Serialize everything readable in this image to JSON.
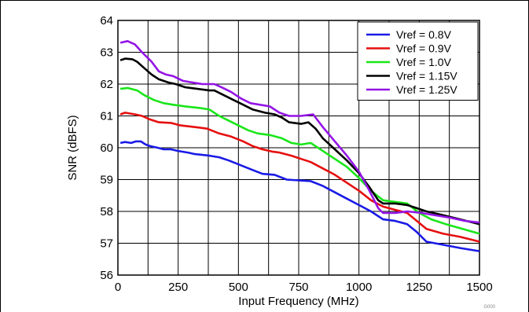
{
  "chart_data": {
    "type": "line",
    "title": "",
    "xlabel": "Input Frequency (MHz)",
    "ylabel": "SNR (dBFS)",
    "xlim": [
      0,
      1500
    ],
    "ylim": [
      56,
      64
    ],
    "xticks": [
      0,
      250,
      500,
      750,
      1000,
      1250,
      1500
    ],
    "yticks": [
      56,
      57,
      58,
      59,
      60,
      61,
      62,
      63,
      64
    ],
    "xtick_labels": [
      "0",
      "250",
      "500",
      "750",
      "1000",
      "1250",
      "1500"
    ],
    "ytick_labels": [
      "56",
      "57",
      "58",
      "59",
      "60",
      "61",
      "62",
      "63",
      "64"
    ],
    "grid": true,
    "legend_position": "top-right",
    "series": [
      {
        "name": "Vref = 0.8V",
        "color": "#1a1ae6",
        "points": [
          [
            10,
            60.15
          ],
          [
            30,
            60.18
          ],
          [
            55,
            60.15
          ],
          [
            75,
            60.2
          ],
          [
            95,
            60.2
          ],
          [
            115,
            60.1
          ],
          [
            135,
            60.05
          ],
          [
            165,
            60.0
          ],
          [
            190,
            59.95
          ],
          [
            220,
            59.95
          ],
          [
            250,
            59.9
          ],
          [
            290,
            59.85
          ],
          [
            320,
            59.8
          ],
          [
            380,
            59.75
          ],
          [
            420,
            59.7
          ],
          [
            460,
            59.6
          ],
          [
            510,
            59.45
          ],
          [
            560,
            59.3
          ],
          [
            600,
            59.18
          ],
          [
            650,
            59.15
          ],
          [
            700,
            59.0
          ],
          [
            760,
            58.97
          ],
          [
            800,
            58.95
          ],
          [
            850,
            58.8
          ],
          [
            900,
            58.6
          ],
          [
            950,
            58.4
          ],
          [
            1000,
            58.2
          ],
          [
            1050,
            58.0
          ],
          [
            1100,
            57.75
          ],
          [
            1150,
            57.7
          ],
          [
            1200,
            57.6
          ],
          [
            1240,
            57.35
          ],
          [
            1280,
            57.05
          ],
          [
            1350,
            56.95
          ],
          [
            1420,
            56.85
          ],
          [
            1500,
            56.75
          ]
        ]
      },
      {
        "name": "Vref = 0.9V",
        "color": "#e60f0f",
        "points": [
          [
            10,
            61.05
          ],
          [
            30,
            61.1
          ],
          [
            70,
            61.05
          ],
          [
            100,
            61.0
          ],
          [
            130,
            60.9
          ],
          [
            170,
            60.8
          ],
          [
            220,
            60.78
          ],
          [
            260,
            60.7
          ],
          [
            320,
            60.65
          ],
          [
            370,
            60.6
          ],
          [
            420,
            60.45
          ],
          [
            470,
            60.35
          ],
          [
            520,
            60.2
          ],
          [
            560,
            60.05
          ],
          [
            600,
            59.95
          ],
          [
            640,
            59.88
          ],
          [
            670,
            59.85
          ],
          [
            720,
            59.75
          ],
          [
            760,
            59.65
          ],
          [
            800,
            59.55
          ],
          [
            850,
            59.35
          ],
          [
            900,
            59.15
          ],
          [
            950,
            58.9
          ],
          [
            1000,
            58.65
          ],
          [
            1050,
            58.35
          ],
          [
            1100,
            58.15
          ],
          [
            1150,
            58.05
          ],
          [
            1200,
            57.95
          ],
          [
            1240,
            57.7
          ],
          [
            1280,
            57.45
          ],
          [
            1350,
            57.3
          ],
          [
            1420,
            57.2
          ],
          [
            1500,
            57.05
          ]
        ]
      },
      {
        "name": "Vref = 1.0V",
        "color": "#19e619",
        "points": [
          [
            10,
            61.85
          ],
          [
            40,
            61.88
          ],
          [
            80,
            61.8
          ],
          [
            110,
            61.65
          ],
          [
            150,
            61.5
          ],
          [
            190,
            61.4
          ],
          [
            230,
            61.35
          ],
          [
            280,
            61.3
          ],
          [
            340,
            61.25
          ],
          [
            380,
            61.2
          ],
          [
            420,
            61.0
          ],
          [
            460,
            60.85
          ],
          [
            500,
            60.7
          ],
          [
            540,
            60.55
          ],
          [
            580,
            60.45
          ],
          [
            630,
            60.4
          ],
          [
            680,
            60.3
          ],
          [
            720,
            60.15
          ],
          [
            760,
            60.1
          ],
          [
            800,
            60.15
          ],
          [
            850,
            59.9
          ],
          [
            900,
            59.65
          ],
          [
            950,
            59.4
          ],
          [
            1000,
            59.05
          ],
          [
            1050,
            58.65
          ],
          [
            1100,
            58.35
          ],
          [
            1150,
            58.3
          ],
          [
            1200,
            58.25
          ],
          [
            1250,
            57.95
          ],
          [
            1300,
            57.75
          ],
          [
            1360,
            57.6
          ],
          [
            1430,
            57.45
          ],
          [
            1500,
            57.3
          ]
        ]
      },
      {
        "name": "Vref = 1.15V",
        "color": "#000000",
        "points": [
          [
            10,
            62.75
          ],
          [
            30,
            62.8
          ],
          [
            60,
            62.78
          ],
          [
            80,
            62.7
          ],
          [
            110,
            62.5
          ],
          [
            140,
            62.3
          ],
          [
            170,
            62.15
          ],
          [
            210,
            62.05
          ],
          [
            240,
            62.0
          ],
          [
            280,
            61.9
          ],
          [
            330,
            61.85
          ],
          [
            380,
            61.8
          ],
          [
            400,
            61.8
          ],
          [
            440,
            61.65
          ],
          [
            480,
            61.5
          ],
          [
            520,
            61.35
          ],
          [
            560,
            61.2
          ],
          [
            610,
            61.1
          ],
          [
            650,
            61.05
          ],
          [
            680,
            60.95
          ],
          [
            710,
            60.8
          ],
          [
            760,
            60.75
          ],
          [
            790,
            60.8
          ],
          [
            820,
            60.6
          ],
          [
            850,
            60.3
          ],
          [
            900,
            59.95
          ],
          [
            950,
            59.6
          ],
          [
            1000,
            59.2
          ],
          [
            1040,
            58.8
          ],
          [
            1080,
            58.35
          ],
          [
            1100,
            58.25
          ],
          [
            1150,
            58.25
          ],
          [
            1200,
            58.2
          ],
          [
            1240,
            58.1
          ],
          [
            1280,
            58.0
          ],
          [
            1340,
            57.9
          ],
          [
            1420,
            57.75
          ],
          [
            1500,
            57.6
          ]
        ]
      },
      {
        "name": "Vref = 1.25V",
        "color": "#9414e6",
        "points": [
          [
            10,
            63.3
          ],
          [
            40,
            63.35
          ],
          [
            70,
            63.25
          ],
          [
            100,
            63.0
          ],
          [
            140,
            62.7
          ],
          [
            170,
            62.4
          ],
          [
            200,
            62.3
          ],
          [
            230,
            62.25
          ],
          [
            270,
            62.1
          ],
          [
            310,
            62.05
          ],
          [
            350,
            62.0
          ],
          [
            400,
            62.0
          ],
          [
            430,
            61.9
          ],
          [
            470,
            61.75
          ],
          [
            510,
            61.55
          ],
          [
            550,
            61.4
          ],
          [
            590,
            61.35
          ],
          [
            630,
            61.3
          ],
          [
            670,
            61.1
          ],
          [
            710,
            61.0
          ],
          [
            760,
            61.0
          ],
          [
            810,
            61.05
          ],
          [
            850,
            60.65
          ],
          [
            900,
            60.2
          ],
          [
            950,
            59.75
          ],
          [
            1000,
            59.25
          ],
          [
            1040,
            58.7
          ],
          [
            1080,
            58.1
          ],
          [
            1100,
            57.95
          ],
          [
            1150,
            57.95
          ],
          [
            1200,
            58.0
          ],
          [
            1260,
            57.95
          ],
          [
            1300,
            57.9
          ],
          [
            1380,
            57.8
          ],
          [
            1440,
            57.7
          ],
          [
            1500,
            57.65
          ]
        ]
      }
    ]
  },
  "corner_code": "G000"
}
